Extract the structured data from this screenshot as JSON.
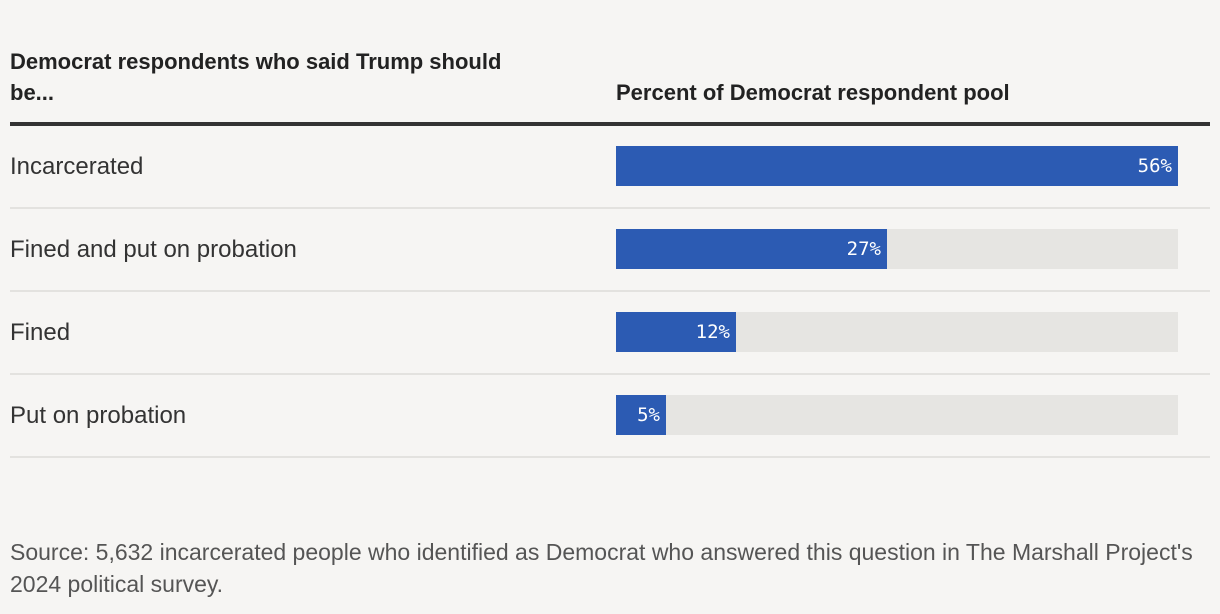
{
  "header": {
    "category_heading": "Democrat respondents who said Trump should be...",
    "value_heading": "Percent of Democrat respondent pool"
  },
  "chart_data": {
    "type": "bar",
    "orientation": "horizontal",
    "categories": [
      "Incarcerated",
      "Fined and put on probation",
      "Fined",
      "Put on probation"
    ],
    "values": [
      56,
      27,
      12,
      5
    ],
    "value_labels": [
      "56%",
      "27%",
      "12%",
      "5%"
    ],
    "xlim": [
      0,
      56
    ],
    "unit": "%"
  },
  "source": "Source: 5,632 incarcerated people who identified as Democrat who answered this question in The Marshall Project's 2024 political survey.",
  "colors": {
    "bar": "#2c5bb3",
    "track": "#e6e5e2",
    "background": "#f6f5f3"
  }
}
